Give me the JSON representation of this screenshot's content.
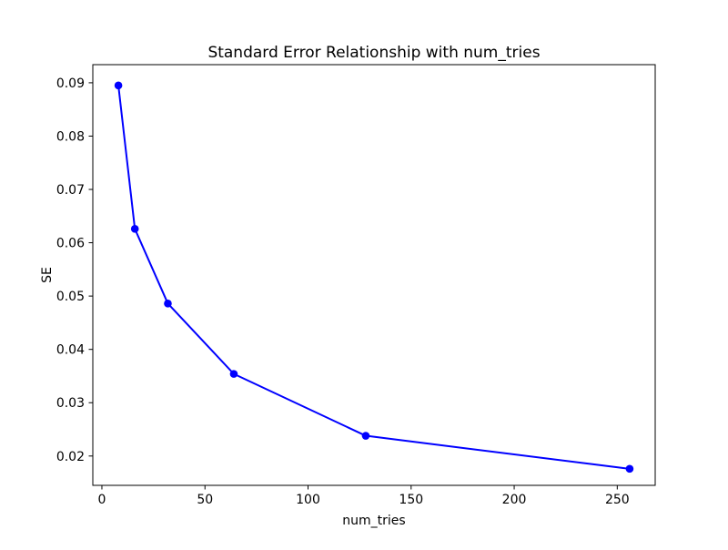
{
  "figure": {
    "background": "#ffffff",
    "plot_background": "#ffffff",
    "spine_color": "#000000"
  },
  "chart_data": {
    "type": "line",
    "title": "Standard Error Relationship with num_tries",
    "xlabel": "num_tries",
    "ylabel": "SE",
    "x": [
      8,
      16,
      32,
      64,
      128,
      256
    ],
    "series": [
      {
        "name": "SE",
        "color": "#0000ff",
        "marker": "circle",
        "values": [
          0.0895,
          0.0626,
          0.0486,
          0.0354,
          0.0238,
          0.0176
        ]
      }
    ],
    "xticks": [
      0,
      50,
      100,
      150,
      200,
      250
    ],
    "yticks": [
      0.02,
      0.03,
      0.04,
      0.05,
      0.06,
      0.07,
      0.08,
      0.09
    ],
    "xlim": [
      -4.4,
      268.4
    ],
    "ylim": [
      0.0145,
      0.0934
    ],
    "grid": false,
    "legend_position": "none"
  }
}
